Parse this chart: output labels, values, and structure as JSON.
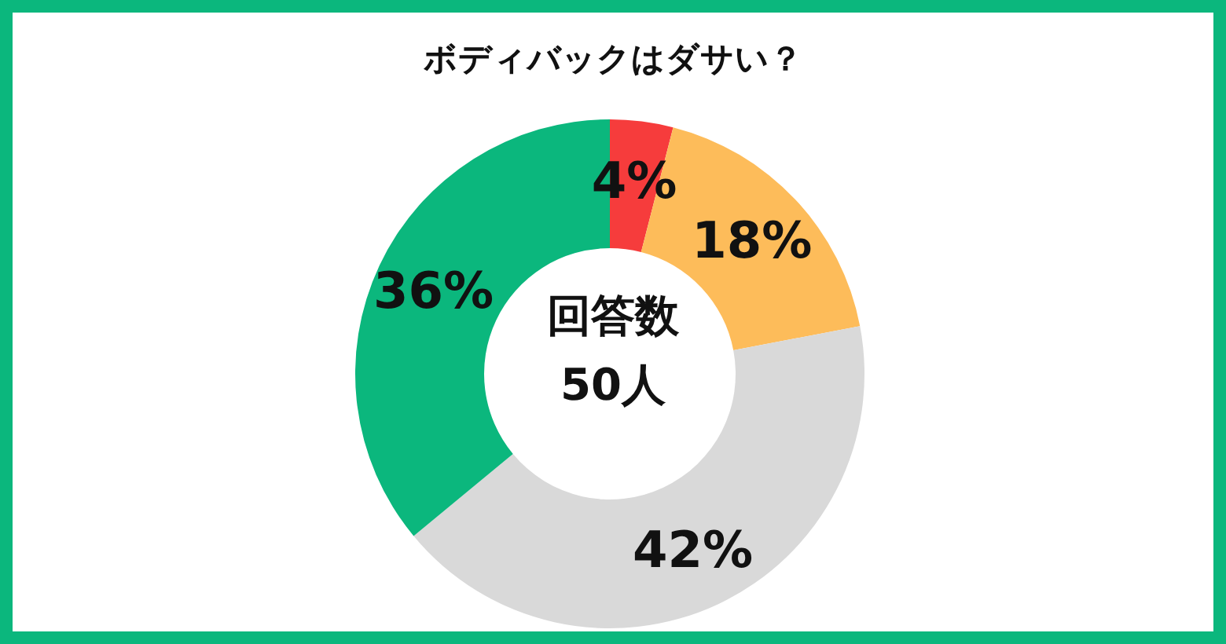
{
  "chart_data": {
    "type": "donut",
    "title": "ボディバックはダサい？",
    "categories": [
      null,
      null,
      null,
      null
    ],
    "values": [
      4,
      18,
      42,
      36
    ],
    "colors": [
      "#f63c3c",
      "#fdbc5a",
      "#d9d9d9",
      "#0bb77d"
    ],
    "value_labels": [
      "4%",
      "18%",
      "42%",
      "36%"
    ],
    "annotations": [
      "回答数",
      "50人"
    ]
  }
}
